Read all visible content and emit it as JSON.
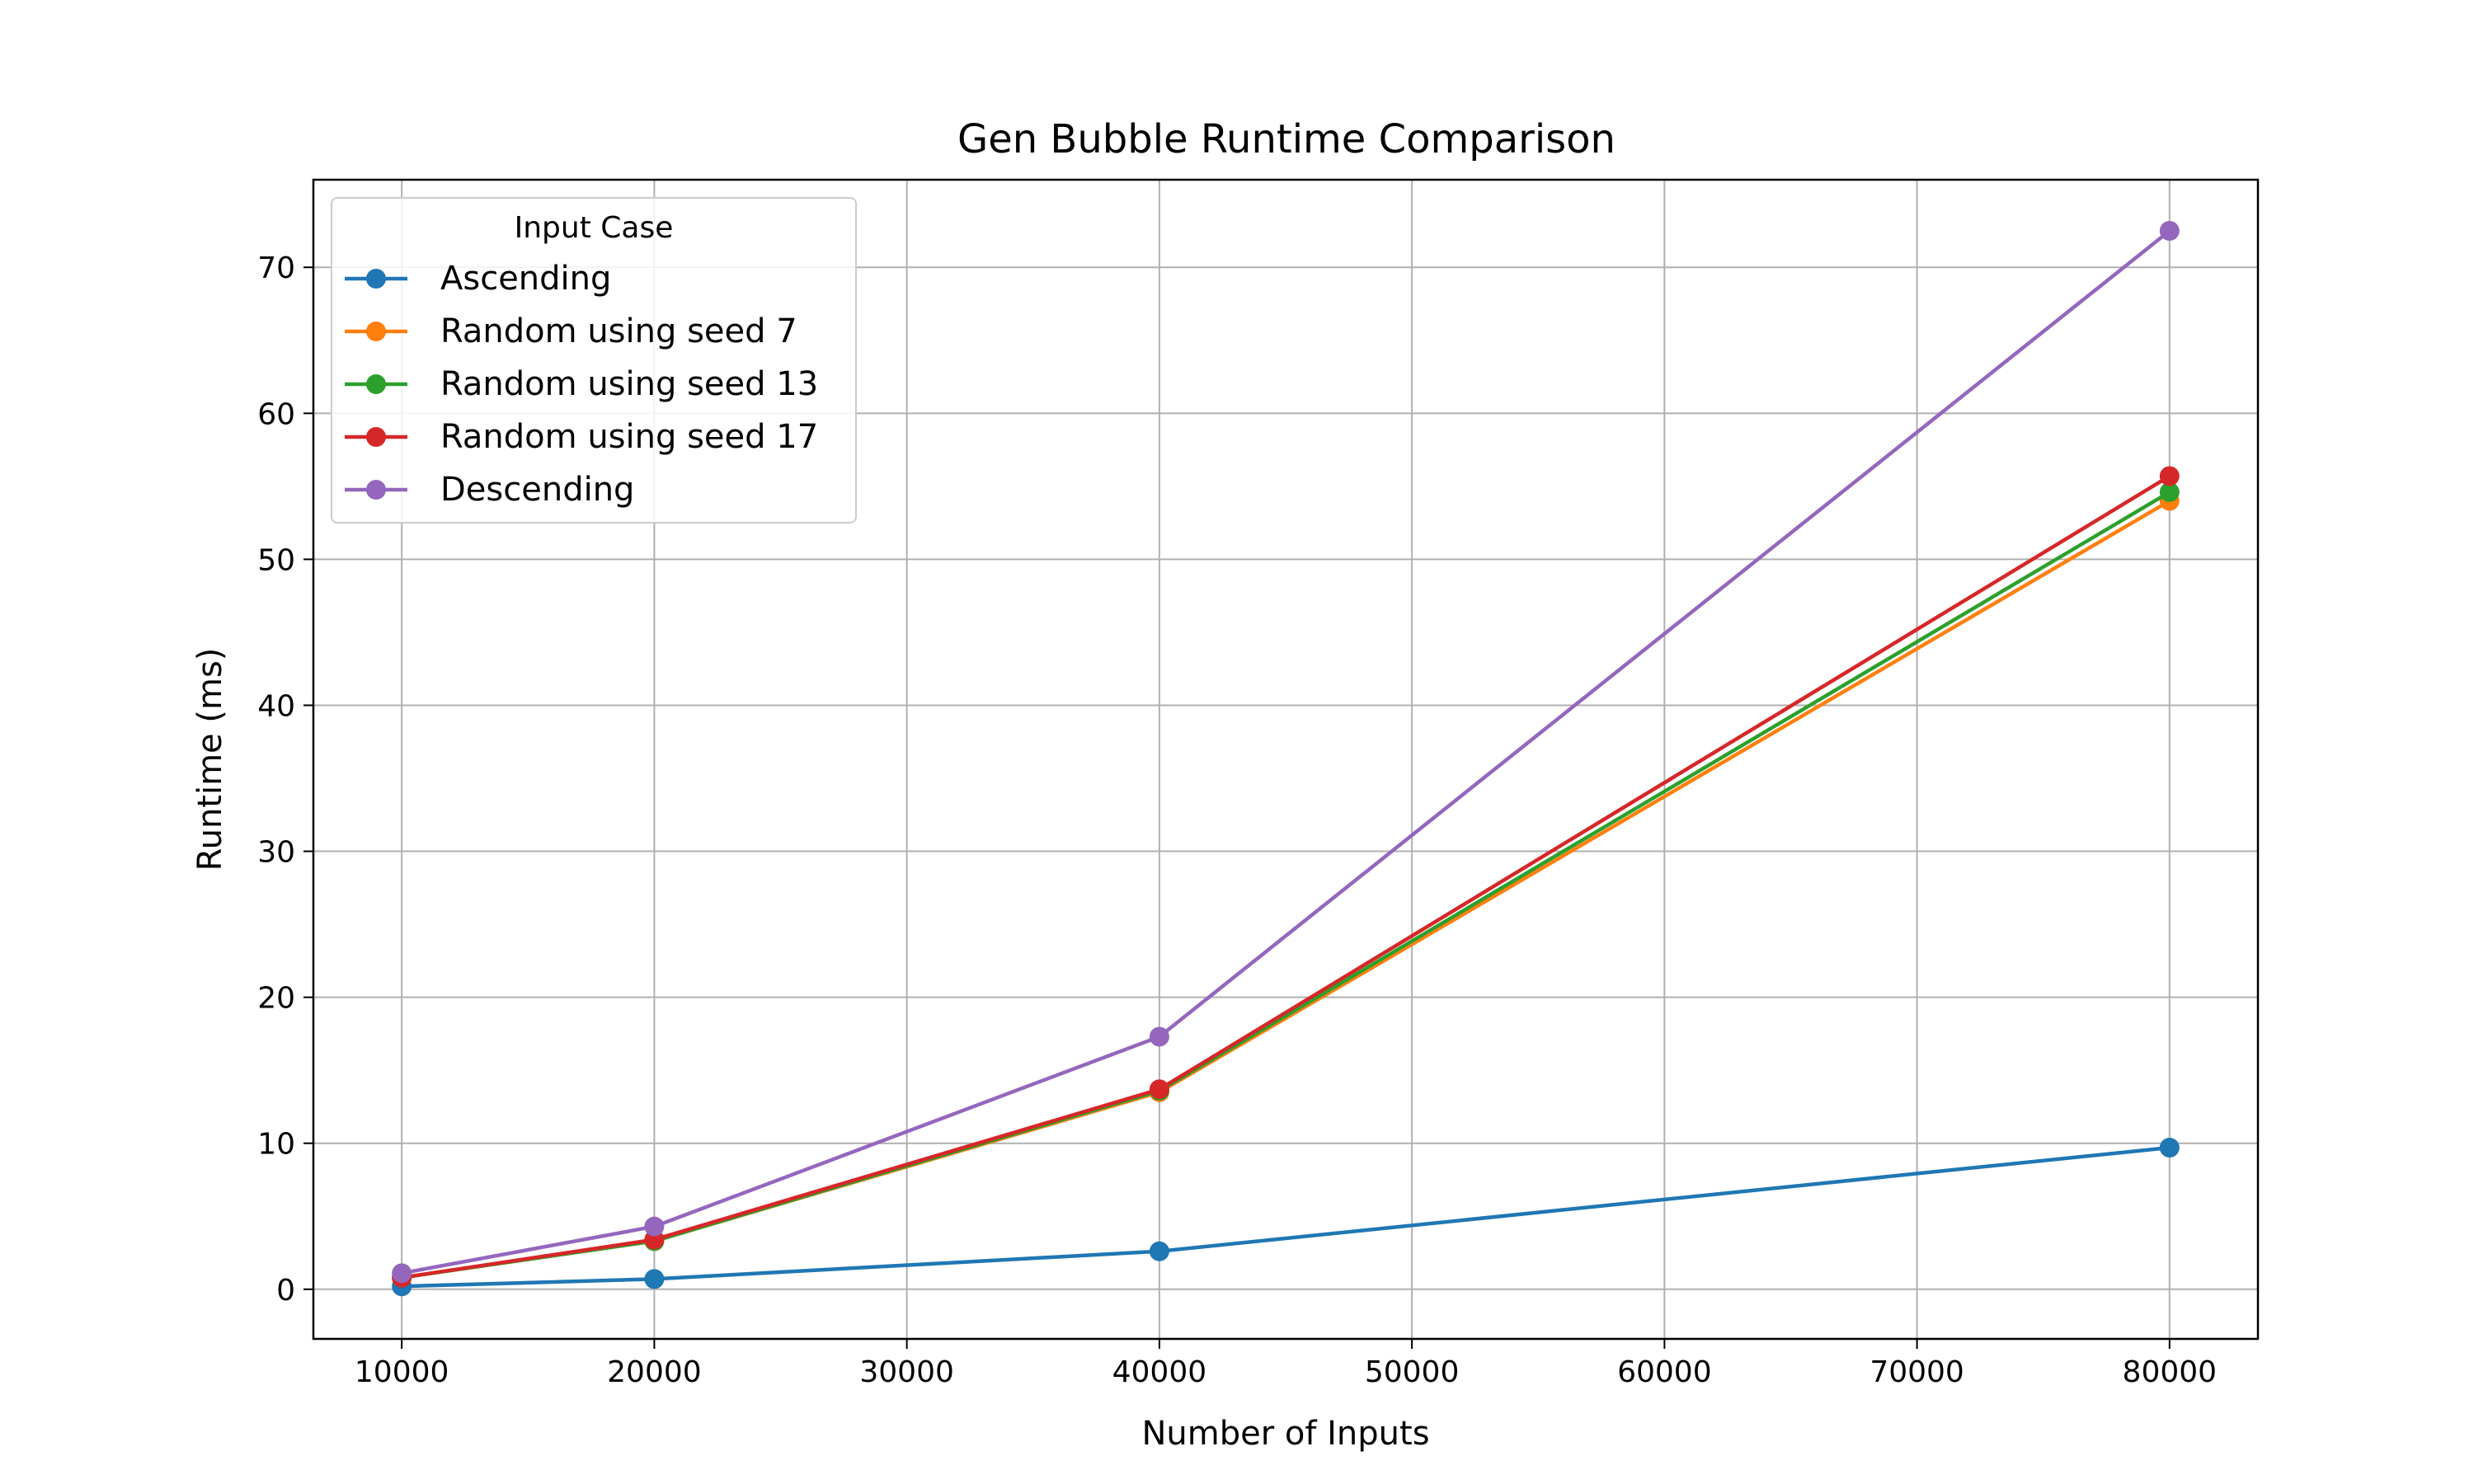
{
  "chart_data": {
    "type": "line",
    "title": "Gen Bubble Runtime Comparison",
    "xlabel": "Number of Inputs",
    "ylabel": "Runtime (ms)",
    "x": [
      10000,
      20000,
      40000,
      80000
    ],
    "xlim": [
      6500,
      83500
    ],
    "ylim": [
      -3.4,
      76.0
    ],
    "xticks": [
      10000,
      20000,
      30000,
      40000,
      50000,
      60000,
      70000,
      80000
    ],
    "yticks": [
      0,
      10,
      20,
      30,
      40,
      50,
      60,
      70
    ],
    "grid": true,
    "legend": {
      "title": "Input Case",
      "placement": "top-left"
    },
    "series": [
      {
        "name": "Ascending",
        "color": "#1f77b4",
        "values": [
          0.2,
          0.7,
          2.6,
          9.7
        ]
      },
      {
        "name": "Random using seed 7",
        "color": "#ff7f0e",
        "values": [
          0.8,
          3.3,
          13.5,
          54.0
        ]
      },
      {
        "name": "Random using seed 13",
        "color": "#2ca02c",
        "values": [
          0.8,
          3.3,
          13.6,
          54.6
        ]
      },
      {
        "name": "Random using seed 17",
        "color": "#d62728",
        "values": [
          0.8,
          3.4,
          13.7,
          55.7
        ]
      },
      {
        "name": "Descending",
        "color": "#9467bd",
        "values": [
          1.1,
          4.3,
          17.3,
          72.5
        ]
      }
    ]
  }
}
